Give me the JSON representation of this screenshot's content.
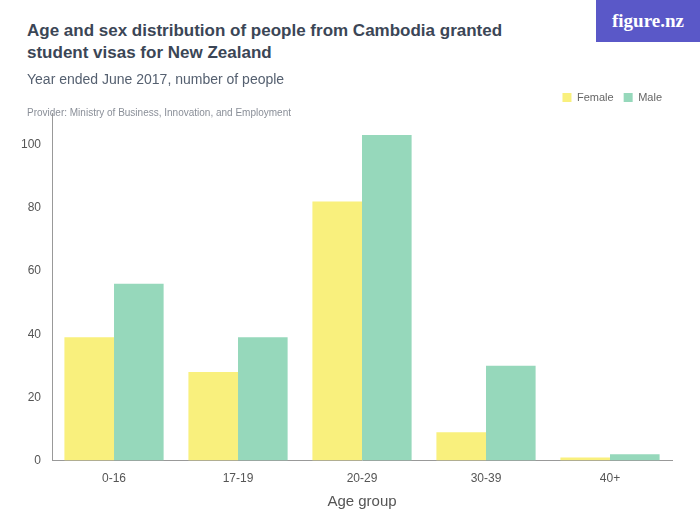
{
  "branding": "figure.nz",
  "chart_data": {
    "type": "bar",
    "title": "Age and sex distribution of people from Cambodia granted student visas for New Zealand",
    "subtitle": "Year ended June 2017, number of people",
    "provider": "Provider: Ministry of Business, Innovation, and Employment",
    "x_label": "Age group",
    "categories": [
      "0-16",
      "17-19",
      "20-29",
      "30-39",
      "40+"
    ],
    "series": [
      {
        "name": "Female",
        "color": "#f9f07d",
        "values": [
          39,
          28,
          82,
          9,
          1
        ]
      },
      {
        "name": "Male",
        "color": "#96d8bb",
        "values": [
          56,
          39,
          103,
          30,
          2
        ]
      }
    ],
    "ylim": [
      0,
      110
    ],
    "yticks": [
      0,
      20,
      40,
      60,
      80,
      100
    ],
    "grid": false,
    "legend": "top-right"
  }
}
